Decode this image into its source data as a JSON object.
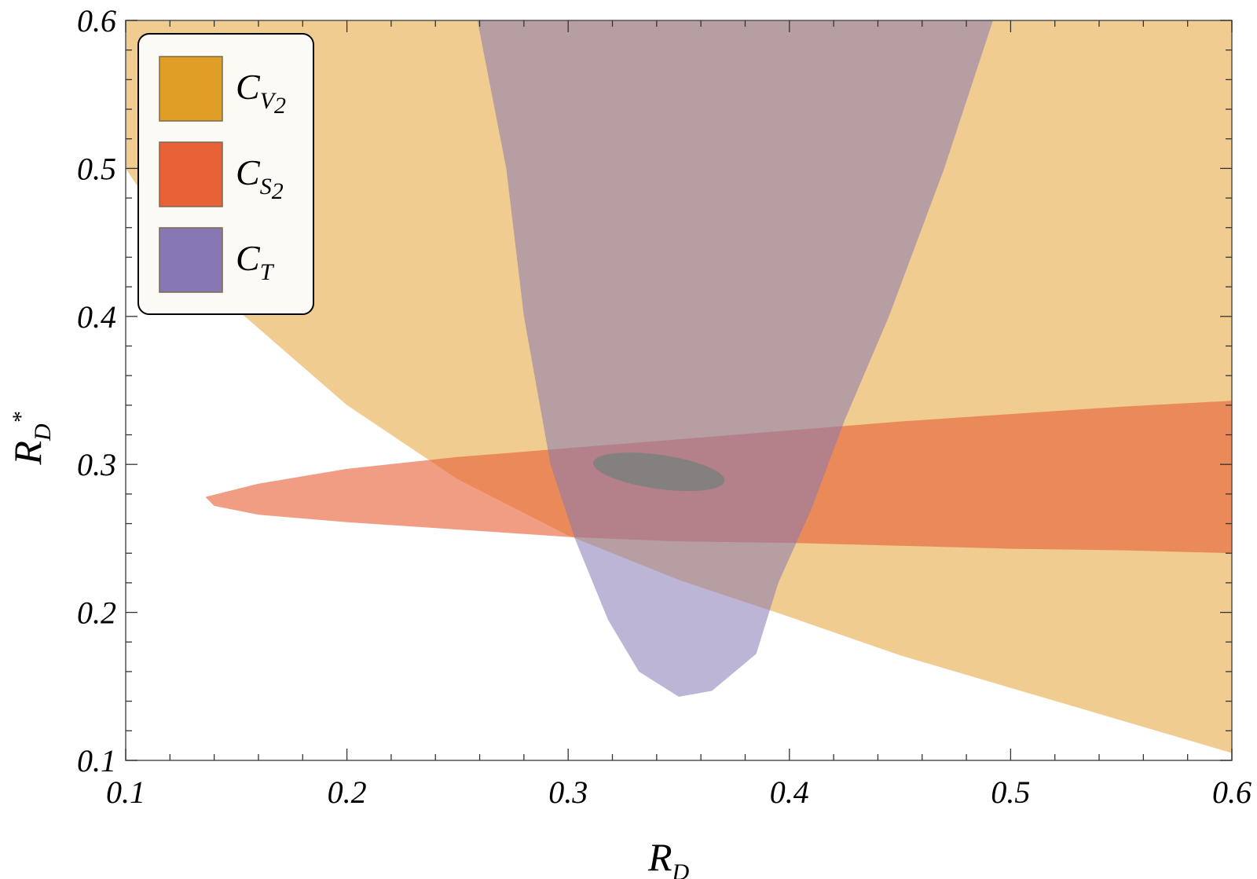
{
  "chart_data": {
    "type": "area",
    "xlim": [
      0.1,
      0.6
    ],
    "ylim": [
      0.1,
      0.6
    ],
    "x_ticks": [
      0.1,
      0.2,
      0.3,
      0.4,
      0.5,
      0.6
    ],
    "y_ticks": [
      0.1,
      0.2,
      0.3,
      0.4,
      0.5,
      0.6
    ],
    "x_tick_labels": [
      "0.1",
      "0.2",
      "0.3",
      "0.4",
      "0.5",
      "0.6"
    ],
    "y_tick_labels": [
      "0.1",
      "0.2",
      "0.3",
      "0.4",
      "0.5",
      "0.6"
    ],
    "xlabel": {
      "main": "R",
      "sub": "D"
    },
    "ylabel": {
      "main": "R",
      "sub": "D",
      "sup": "*"
    },
    "legend_position": "top-left",
    "grid": false,
    "series": [
      {
        "name": {
          "main": "C",
          "sub": "V",
          "subsub": "2"
        },
        "color": "#E19E27",
        "region_color": "#F0CC90",
        "boundary": [
          [
            0.1,
            0.6
          ],
          [
            0.6,
            0.6
          ],
          [
            0.6,
            0.105
          ],
          [
            0.55,
            0.127
          ],
          [
            0.5,
            0.149
          ],
          [
            0.45,
            0.171
          ],
          [
            0.4,
            0.197
          ],
          [
            0.35,
            0.222
          ],
          [
            0.3,
            0.252
          ],
          [
            0.25,
            0.29
          ],
          [
            0.2,
            0.34
          ],
          [
            0.15,
            0.405
          ],
          [
            0.12,
            0.455
          ],
          [
            0.1,
            0.5
          ]
        ]
      },
      {
        "name": {
          "main": "C",
          "sub": "S",
          "subsub": "2"
        },
        "color": "#E86137",
        "region_color": "#F4AF9A",
        "boundary": [
          [
            0.136,
            0.278
          ],
          [
            0.16,
            0.287
          ],
          [
            0.2,
            0.297
          ],
          [
            0.25,
            0.305
          ],
          [
            0.3,
            0.311
          ],
          [
            0.35,
            0.317
          ],
          [
            0.4,
            0.323
          ],
          [
            0.45,
            0.329
          ],
          [
            0.5,
            0.334
          ],
          [
            0.55,
            0.339
          ],
          [
            0.6,
            0.343
          ],
          [
            0.6,
            0.24
          ],
          [
            0.55,
            0.242
          ],
          [
            0.5,
            0.243
          ],
          [
            0.45,
            0.245
          ],
          [
            0.4,
            0.247
          ],
          [
            0.35,
            0.248
          ],
          [
            0.3,
            0.251
          ],
          [
            0.25,
            0.256
          ],
          [
            0.2,
            0.261
          ],
          [
            0.16,
            0.266
          ],
          [
            0.14,
            0.272
          ]
        ]
      },
      {
        "name": {
          "main": "C",
          "sub": "T"
        },
        "color": "#8778B3",
        "region_color": "#C0B9D8",
        "boundary": [
          [
            0.259,
            0.6
          ],
          [
            0.492,
            0.6
          ],
          [
            0.47,
            0.5
          ],
          [
            0.445,
            0.4
          ],
          [
            0.425,
            0.33
          ],
          [
            0.41,
            0.27
          ],
          [
            0.395,
            0.22
          ],
          [
            0.385,
            0.172
          ],
          [
            0.365,
            0.147
          ],
          [
            0.35,
            0.143
          ],
          [
            0.332,
            0.16
          ],
          [
            0.318,
            0.195
          ],
          [
            0.303,
            0.25
          ],
          [
            0.292,
            0.3
          ],
          [
            0.28,
            0.4
          ],
          [
            0.272,
            0.5
          ]
        ]
      }
    ],
    "best_fit_ellipse": {
      "center": [
        0.341,
        0.295
      ],
      "semi_axis_x": 0.03,
      "semi_axis_y": 0.0115,
      "tilt_deg": 8,
      "color": "#858080"
    }
  }
}
